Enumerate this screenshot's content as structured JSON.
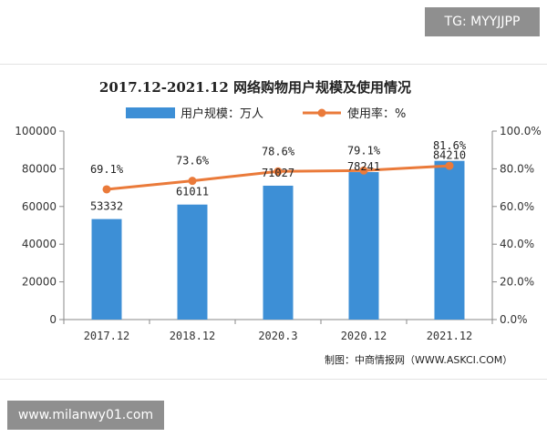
{
  "badges": {
    "tg": "TG: MYYJJPP",
    "url": "www.milanwy01.com"
  },
  "colors": {
    "bar": "#3d8fd6",
    "line": "#ea7a3a",
    "axis": "#888888"
  },
  "chart_data": {
    "type": "bar",
    "title": "2017.12-2021.12 网络购物用户规模及使用情况",
    "categories": [
      "2017.12",
      "2018.12",
      "2020.3",
      "2020.12",
      "2021.12"
    ],
    "series": [
      {
        "name": "用户规模：万人",
        "type": "bar",
        "axis": "left",
        "values": [
          53332,
          61011,
          71027,
          78241,
          84210
        ]
      },
      {
        "name": "使用率：%",
        "type": "line",
        "axis": "right",
        "values": [
          69.1,
          73.6,
          78.6,
          79.1,
          81.6
        ]
      }
    ],
    "bar_labels": [
      "53332",
      "61011",
      "71027",
      "78241",
      "84210"
    ],
    "line_labels": [
      "69.1%",
      "73.6%",
      "78.6%",
      "79.1%",
      "81.6%"
    ],
    "y_left": {
      "ylim": [
        0,
        100000
      ],
      "ticks": [
        "0",
        "20000",
        "40000",
        "60000",
        "80000",
        "100000"
      ]
    },
    "y_right": {
      "ylim": [
        0,
        100
      ],
      "ticks": [
        "0.0%",
        "20.0%",
        "40.0%",
        "60.0%",
        "80.0%",
        "100.0%"
      ]
    },
    "legend": {
      "placement": "top",
      "bar_label": "用户规模：万人",
      "line_label": "使用率：%"
    },
    "source": "制图：中商情报网（WWW.ASKCI.COM）",
    "grid": false
  }
}
